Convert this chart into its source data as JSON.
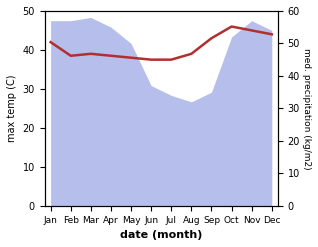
{
  "months": [
    "Jan",
    "Feb",
    "Mar",
    "Apr",
    "May",
    "Jun",
    "Jul",
    "Aug",
    "Sep",
    "Oct",
    "Nov",
    "Dec"
  ],
  "precipitation": [
    57,
    57,
    58,
    55,
    50,
    37,
    34,
    32,
    35,
    52,
    57,
    54
  ],
  "temperature": [
    42,
    38.5,
    39,
    38.5,
    38,
    37.5,
    37.5,
    39,
    43,
    46,
    45,
    44
  ],
  "precip_color": "#aab4e8",
  "temp_color": "#b03030",
  "left_ylim": [
    0,
    50
  ],
  "right_ylim": [
    0,
    60
  ],
  "left_yticks": [
    0,
    10,
    20,
    30,
    40,
    50
  ],
  "right_yticks": [
    0,
    10,
    20,
    30,
    40,
    50,
    60
  ],
  "ylabel_left": "max temp (C)",
  "ylabel_right": "med. precipitation (kg/m2)",
  "xlabel": "date (month)",
  "bg_color": "#ffffff"
}
